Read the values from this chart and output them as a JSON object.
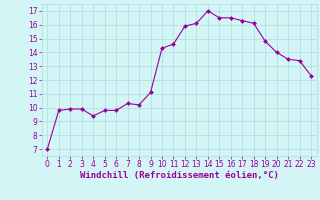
{
  "x": [
    0,
    1,
    2,
    3,
    4,
    5,
    6,
    7,
    8,
    9,
    10,
    11,
    12,
    13,
    14,
    15,
    16,
    17,
    18,
    19,
    20,
    21,
    22,
    23
  ],
  "y": [
    7.0,
    9.8,
    9.9,
    9.9,
    9.4,
    9.8,
    9.8,
    10.3,
    10.2,
    11.1,
    14.3,
    14.6,
    15.9,
    16.1,
    17.0,
    16.5,
    16.5,
    16.3,
    16.1,
    14.8,
    14.0,
    13.5,
    13.4,
    12.3
  ],
  "line_color": "#990099",
  "marker": "D",
  "marker_size": 2,
  "bg_color": "#d4f5f5",
  "grid_color": "#aadddd",
  "xlabel": "Windchill (Refroidissement éolien,°C)",
  "xlim": [
    -0.5,
    23.5
  ],
  "ylim": [
    6.5,
    17.5
  ],
  "yticks": [
    7,
    8,
    9,
    10,
    11,
    12,
    13,
    14,
    15,
    16,
    17
  ],
  "xticks": [
    0,
    1,
    2,
    3,
    4,
    5,
    6,
    7,
    8,
    9,
    10,
    11,
    12,
    13,
    14,
    15,
    16,
    17,
    18,
    19,
    20,
    21,
    22,
    23
  ],
  "tick_labelsize": 5.5,
  "xlabel_fontsize": 6.5,
  "line_color_hex": "#990099"
}
